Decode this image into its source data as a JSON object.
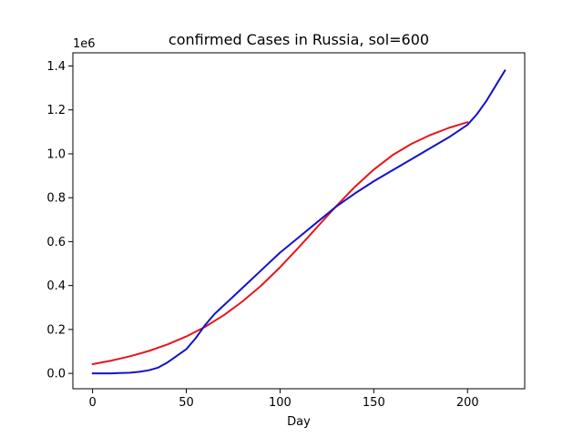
{
  "chart_data": {
    "type": "line",
    "title": "confirmed Cases in Russia, sol=600",
    "xlabel": "Day",
    "ylabel": "",
    "y_offset_label": "1e6",
    "xlim": [
      -10.5,
      230.5
    ],
    "ylim": [
      -0.07,
      1.46
    ],
    "x_ticks": [
      0,
      50,
      100,
      150,
      200
    ],
    "x_tick_labels": [
      "0",
      "50",
      "100",
      "150",
      "200"
    ],
    "y_ticks": [
      0.0,
      0.2,
      0.4,
      0.6,
      0.8,
      1.0,
      1.2,
      1.4
    ],
    "y_tick_labels": [
      "0.0",
      "0.2",
      "0.4",
      "0.6",
      "0.8",
      "1.0",
      "1.2",
      "1.4"
    ],
    "grid": false,
    "legend": "none",
    "series": [
      {
        "color": "#e8141b",
        "x": [
          0,
          10,
          20,
          30,
          40,
          50,
          60,
          70,
          80,
          90,
          100,
          110,
          120,
          130,
          140,
          150,
          160,
          170,
          180,
          190,
          200
        ],
        "y": [
          0.042,
          0.058,
          0.078,
          0.102,
          0.132,
          0.168,
          0.212,
          0.265,
          0.328,
          0.4,
          0.483,
          0.574,
          0.668,
          0.762,
          0.85,
          0.928,
          0.994,
          1.045,
          1.085,
          1.118,
          1.144
        ]
      },
      {
        "color": "#1411cc",
        "x": [
          0,
          10,
          20,
          25,
          30,
          35,
          40,
          45,
          50,
          55,
          60,
          65,
          70,
          80,
          90,
          100,
          110,
          120,
          130,
          140,
          150,
          160,
          170,
          180,
          190,
          200,
          205,
          210,
          215,
          220
        ],
        "y": [
          0.0,
          0.0,
          0.003,
          0.007,
          0.014,
          0.026,
          0.05,
          0.08,
          0.11,
          0.16,
          0.22,
          0.27,
          0.31,
          0.39,
          0.47,
          0.55,
          0.62,
          0.69,
          0.76,
          0.82,
          0.875,
          0.925,
          0.975,
          1.025,
          1.075,
          1.132,
          1.18,
          1.24,
          1.31,
          1.38
        ]
      }
    ]
  }
}
